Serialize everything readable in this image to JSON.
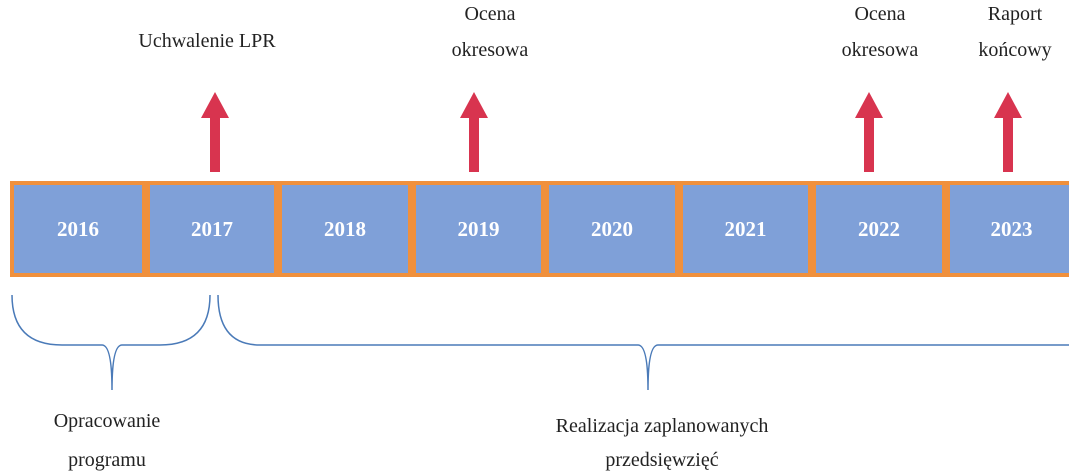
{
  "timeline": {
    "years": [
      "2016",
      "2017",
      "2018",
      "2019",
      "2020",
      "2021",
      "2022",
      "2023"
    ],
    "events": [
      {
        "lines": [
          "Uchwalenie  LPR"
        ]
      },
      {
        "lines": [
          "Ocena",
          "okresowa"
        ]
      },
      {
        "lines": [
          "Ocena",
          "okresowa"
        ]
      },
      {
        "lines": [
          "Raport",
          "końcowy"
        ]
      }
    ],
    "phases": [
      {
        "lines": [
          "Opracowanie",
          "programu"
        ]
      },
      {
        "lines": [
          "Realizacja  zaplanowanych",
          "przedsięwzięć"
        ]
      }
    ]
  }
}
